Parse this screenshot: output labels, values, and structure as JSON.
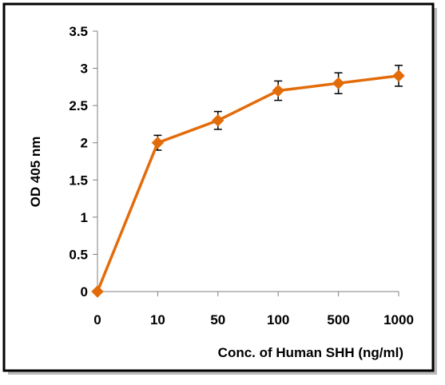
{
  "colors": {
    "series": "#e36c0a",
    "frame": "#000000",
    "axis": "#808080",
    "text": "#000000",
    "error_bar": "#000000"
  },
  "chart_data": {
    "type": "line",
    "title": "",
    "xlabel": "Conc. of  Human SHH (ng/ml)",
    "ylabel": "OD 405 nm",
    "ylim": [
      0,
      3.5
    ],
    "grid": false,
    "legend": "none",
    "x_scale": "categorical",
    "categories": [
      "0",
      "10",
      "50",
      "100",
      "500",
      "1000"
    ],
    "y_ticks": [
      "0",
      "0.5",
      "1",
      "1.5",
      "2",
      "2.5",
      "3",
      "3.5"
    ],
    "series": [
      {
        "values": [
          0,
          2.0,
          2.3,
          2.7,
          2.8,
          2.9
        ],
        "error": [
          0,
          0.1,
          0.12,
          0.13,
          0.14,
          0.14
        ],
        "marker": "diamond",
        "color": "#e36c0a"
      }
    ]
  }
}
